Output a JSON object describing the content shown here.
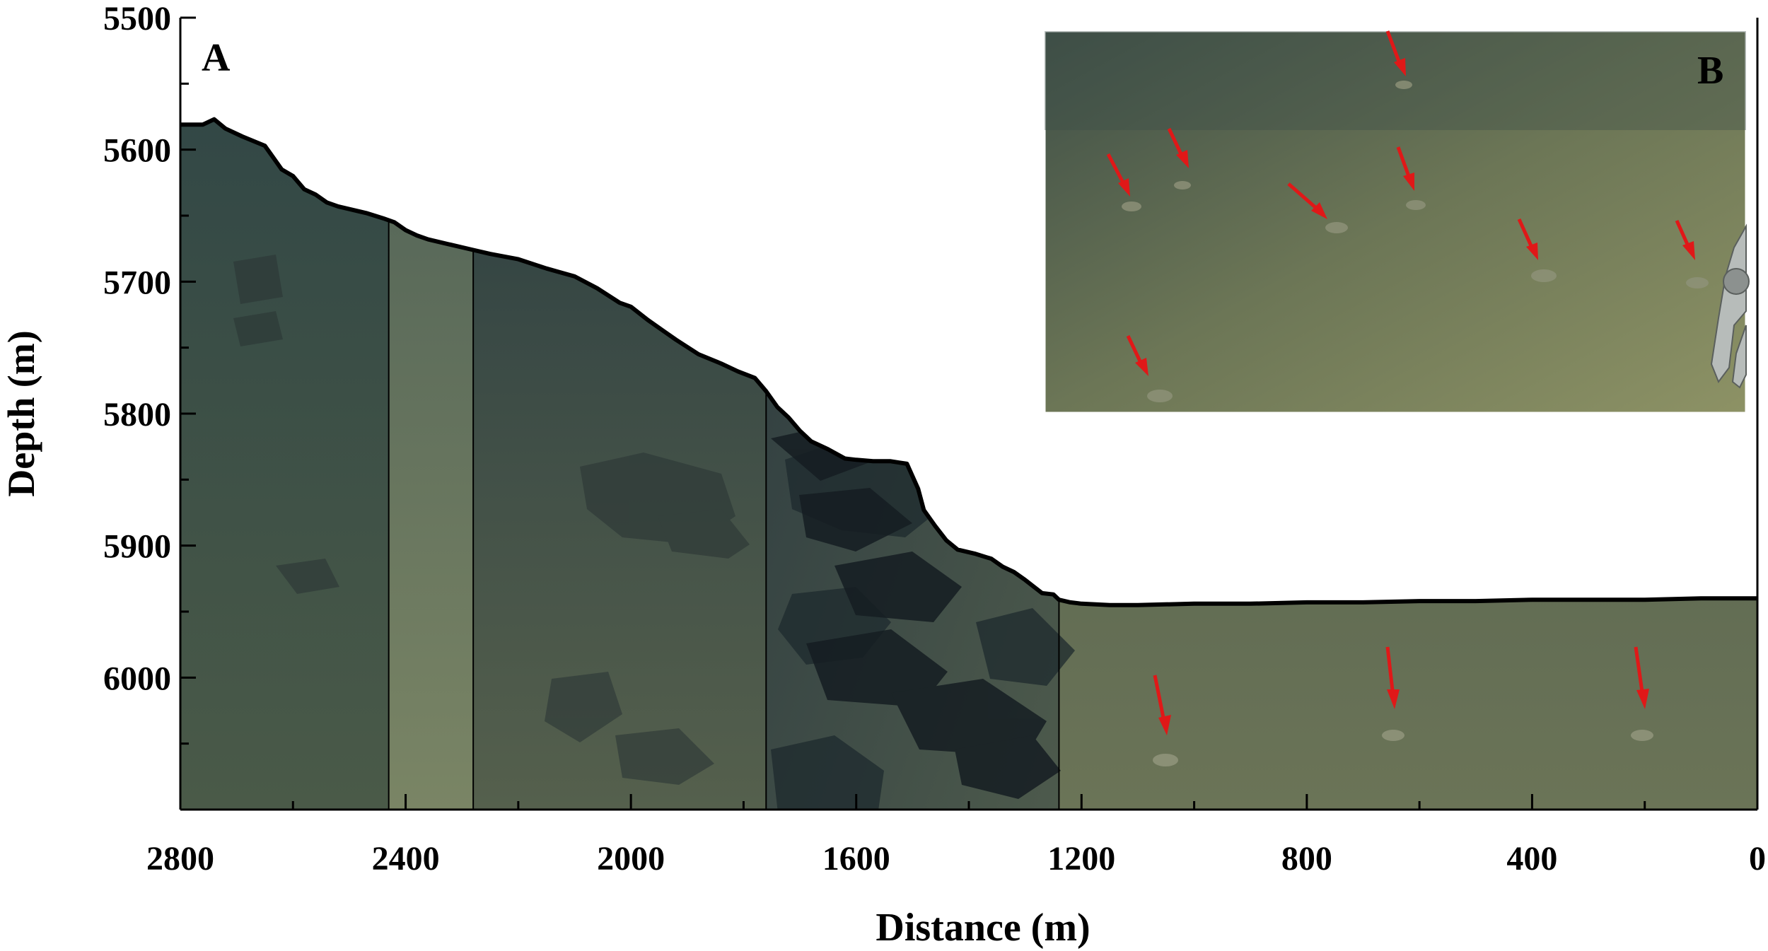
{
  "figure": {
    "panel_a_label": "A",
    "panel_b_label": "B"
  },
  "chart_data": {
    "type": "line",
    "title": "",
    "xlabel": "Distance (m)",
    "ylabel": "Depth (m)",
    "xlim": [
      2800,
      0
    ],
    "ylim": [
      5500,
      6100
    ],
    "x_reversed": true,
    "y_inverted": true,
    "x_ticks": [
      2800,
      2400,
      2000,
      1600,
      1200,
      800,
      400,
      0
    ],
    "x_minor_step": 200,
    "y_ticks": [
      5500,
      5600,
      5700,
      5800,
      5900,
      6000
    ],
    "y_minor_step": 50,
    "grid": false,
    "series": [
      {
        "x": [
          2800,
          2760,
          2740,
          2720,
          2690,
          2650,
          2620,
          2600,
          2580,
          2560,
          2540,
          2520,
          2500,
          2470,
          2440,
          2420,
          2400,
          2380,
          2360,
          2320,
          2280,
          2250,
          2200,
          2150,
          2100,
          2060,
          2020,
          2000,
          1970,
          1940,
          1920,
          1880,
          1840,
          1810,
          1780,
          1760,
          1740,
          1720,
          1700,
          1680,
          1650,
          1620,
          1600,
          1570,
          1540,
          1510,
          1490,
          1480,
          1460,
          1440,
          1420,
          1390,
          1360,
          1340,
          1320,
          1300,
          1270,
          1250,
          1240,
          1220,
          1200,
          1150,
          1100,
          1000,
          900,
          800,
          700,
          600,
          500,
          400,
          300,
          200,
          100,
          0
        ],
        "y": [
          5581,
          5581,
          5577,
          5584,
          5590,
          5597,
          5615,
          5620,
          5630,
          5634,
          5640,
          5643,
          5645,
          5648,
          5652,
          5655,
          5661,
          5665,
          5668,
          5672,
          5676,
          5679,
          5683,
          5690,
          5696,
          5705,
          5716,
          5719,
          5729,
          5738,
          5744,
          5755,
          5762,
          5768,
          5773,
          5783,
          5795,
          5803,
          5813,
          5821,
          5827,
          5834,
          5835,
          5836,
          5836,
          5838,
          5857,
          5873,
          5885,
          5896,
          5903,
          5906,
          5910,
          5916,
          5920,
          5926,
          5936,
          5937,
          5941,
          5943,
          5944,
          5945,
          5945,
          5944,
          5944,
          5943,
          5943,
          5942,
          5942,
          5941,
          5941,
          5941,
          5940,
          5940
        ]
      }
    ],
    "photo_strip_boundaries": [
      2430,
      2280,
      1760,
      1240
    ]
  }
}
